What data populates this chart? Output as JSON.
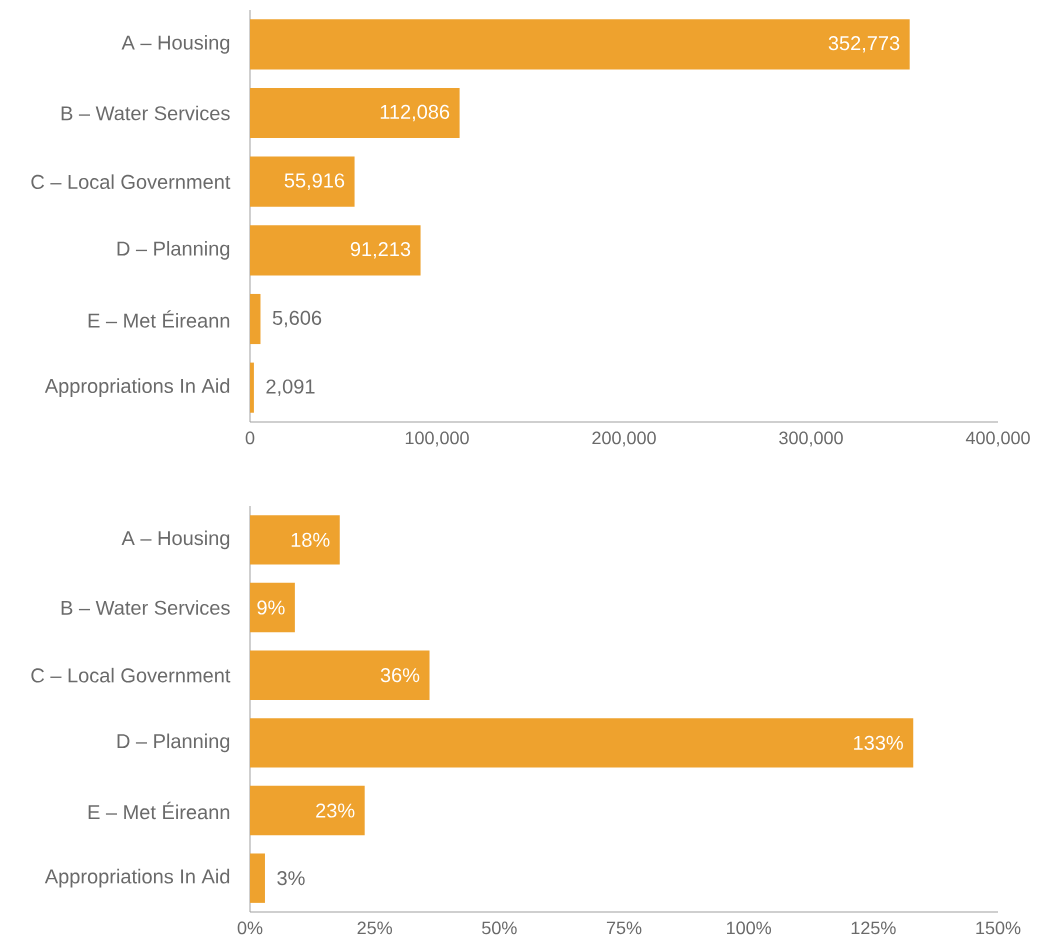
{
  "chart_data": [
    {
      "type": "bar",
      "orientation": "horizontal",
      "categories": [
        "A – Housing",
        "B – Water Services",
        "C – Local Government",
        "D – Planning",
        "E – Met Éireann",
        "Appropriations In Aid"
      ],
      "values": [
        352773,
        112086,
        55916,
        91213,
        5606,
        2091
      ],
      "value_labels": [
        "352,773",
        "112,086",
        "55,916",
        "91,213",
        "5,606",
        "2,091"
      ],
      "color": "#eea22e",
      "xlim": [
        0,
        400000
      ],
      "xticks": [
        0,
        {
          "value": 100000,
          "label": "100,000"
        },
        {
          "value": 200000,
          "label": "200,000"
        },
        {
          "value": 300000,
          "label": "300,000"
        },
        {
          "value": 400000,
          "label": "400,000"
        }
      ]
    },
    {
      "type": "bar",
      "orientation": "horizontal",
      "categories": [
        "A – Housing",
        "B – Water Services",
        "C – Local Government",
        "D – Planning",
        "E – Met Éireann",
        "Appropriations In Aid"
      ],
      "values": [
        18,
        9,
        36,
        133,
        23,
        3
      ],
      "value_labels": [
        "18%",
        "9%",
        "36%",
        "133%",
        "23%",
        "3%"
      ],
      "color": "#eea22e",
      "xlim": [
        0,
        150
      ],
      "xticks": [
        {
          "value": 0,
          "label": "0%"
        },
        {
          "value": 25,
          "label": "25%"
        },
        {
          "value": 50,
          "label": "50%"
        },
        {
          "value": 75,
          "label": "75%"
        },
        {
          "value": 100,
          "label": "100%"
        },
        {
          "value": 125,
          "label": "125%"
        },
        {
          "value": 150,
          "label": "150%"
        }
      ]
    }
  ]
}
